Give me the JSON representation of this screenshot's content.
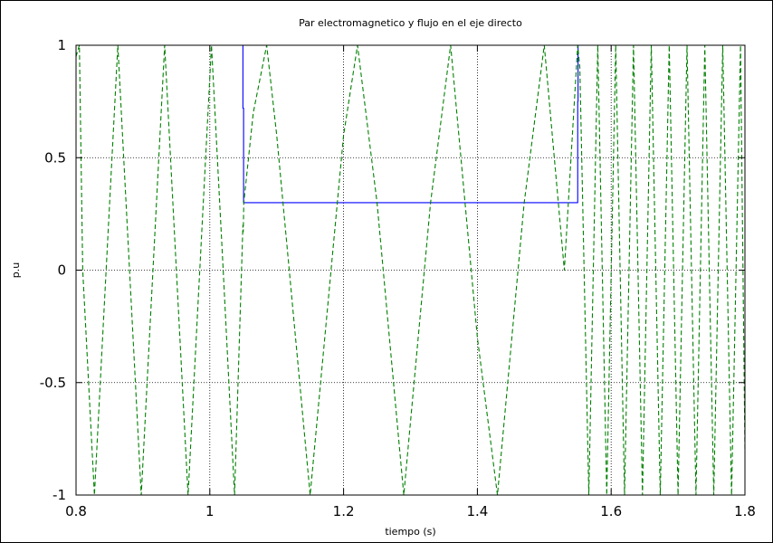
{
  "chart_data": {
    "type": "line",
    "title": "Par electromagnetico y flujo en el eje directo",
    "xlabel": "tiempo (s)",
    "ylabel": "p.u",
    "xlim": [
      0.8,
      1.8
    ],
    "ylim": [
      -1,
      1
    ],
    "x_ticks": [
      0.8,
      1,
      1.2,
      1.4,
      1.6,
      1.8
    ],
    "x_tick_labels": [
      "0.8",
      "1",
      "1.2",
      "1.4",
      "1.6",
      "1.8"
    ],
    "y_ticks": [
      -1,
      -0.5,
      0,
      0.5,
      1
    ],
    "y_tick_labels": [
      "-1",
      "-0.5",
      "0",
      "0.5",
      "1"
    ],
    "grid": true,
    "series": [
      {
        "color": "#0000ff",
        "style": "solid",
        "x": [
          0.8,
          1.0495,
          1.0495,
          1.0505,
          1.0505,
          1.55,
          1.55,
          1.5505,
          1.5505,
          1.8
        ],
        "y": [
          1.0,
          1.0,
          0.72,
          0.72,
          0.3,
          0.3,
          0.75,
          0.75,
          1.0,
          1.0
        ]
      },
      {
        "color": "#008000",
        "style": "dashed",
        "x": [
          0.8,
          0.805,
          0.81,
          0.8275,
          0.845,
          0.8625,
          0.88,
          0.8975,
          0.915,
          0.9325,
          0.95,
          0.9675,
          0.985,
          1.0025,
          1.02,
          1.037,
          1.0495,
          1.05,
          1.0508,
          1.065,
          1.085,
          1.1,
          1.15,
          1.2,
          1.2208,
          1.25,
          1.29,
          1.33,
          1.36,
          1.4,
          1.43,
          1.47,
          1.5,
          1.53,
          1.55,
          1.5532,
          1.5666,
          1.58,
          1.5934,
          1.6068,
          1.62,
          1.6334,
          1.6468,
          1.66,
          1.6734,
          1.6868,
          1.7,
          1.7134,
          1.7268,
          1.74,
          1.7534,
          1.7668,
          1.78,
          1.7934,
          1.8
        ],
        "y": [
          0.95,
          1.0,
          0.0,
          -1.0,
          0.0,
          1.0,
          0.0,
          -1.0,
          0.0,
          1.0,
          0.0,
          -1.0,
          0.0,
          1.0,
          0.0,
          -1.0,
          0.2,
          0.17,
          0.3,
          0.7,
          1.0,
          0.6,
          -1.0,
          0.6,
          1.0,
          0.3,
          -1.0,
          0.3,
          1.0,
          -0.3,
          -1.0,
          0.3,
          1.0,
          0.0,
          1.0,
          0.9,
          -1.0,
          1.0,
          -1.0,
          1.0,
          -1.0,
          1.0,
          -1.0,
          1.0,
          -1.0,
          1.0,
          -1.0,
          1.0,
          -1.0,
          1.0,
          -1.0,
          1.0,
          -1.0,
          1.0,
          -0.8
        ]
      }
    ]
  }
}
